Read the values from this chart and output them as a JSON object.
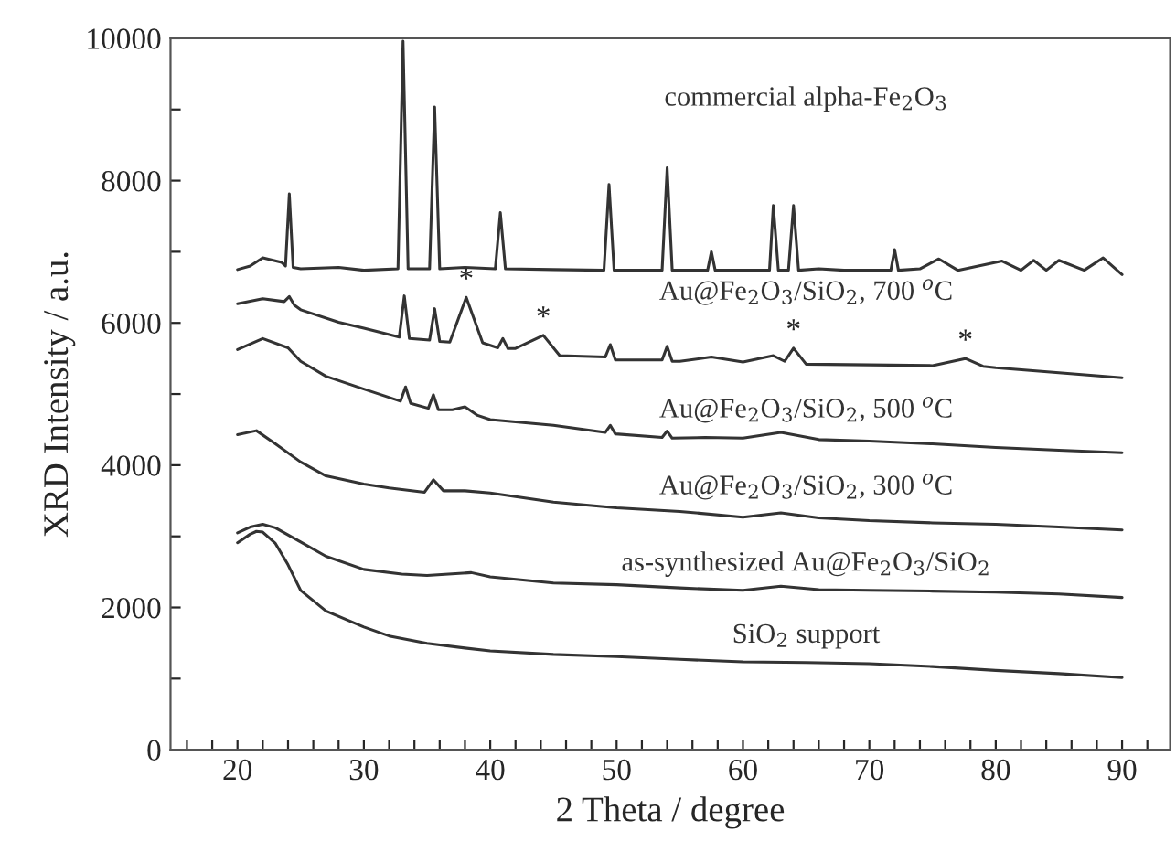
{
  "chart_data": {
    "type": "line",
    "xlabel": "2 Theta / degree",
    "ylabel": "XRD Intensity / a.u.",
    "xlim": [
      14.7,
      93.8
    ],
    "ylim": [
      0,
      10000
    ],
    "xticks": [
      {
        "value": 16,
        "label": null
      },
      {
        "value": 18,
        "label": null
      },
      20,
      {
        "value": 22,
        "label": null
      },
      {
        "value": 24,
        "label": null
      },
      {
        "value": 26,
        "label": null
      },
      {
        "value": 28,
        "label": null
      },
      30,
      {
        "value": 32,
        "label": null
      },
      {
        "value": 34,
        "label": null
      },
      {
        "value": 36,
        "label": null
      },
      {
        "value": 38,
        "label": null
      },
      40,
      {
        "value": 42,
        "label": null
      },
      {
        "value": 44,
        "label": null
      },
      {
        "value": 46,
        "label": null
      },
      {
        "value": 48,
        "label": null
      },
      50,
      {
        "value": 52,
        "label": null
      },
      {
        "value": 54,
        "label": null
      },
      {
        "value": 56,
        "label": null
      },
      {
        "value": 58,
        "label": null
      },
      60,
      {
        "value": 62,
        "label": null
      },
      {
        "value": 64,
        "label": null
      },
      {
        "value": 66,
        "label": null
      },
      {
        "value": 68,
        "label": null
      },
      70,
      {
        "value": 72,
        "label": null
      },
      {
        "value": 74,
        "label": null
      },
      {
        "value": 76,
        "label": null
      },
      {
        "value": 78,
        "label": null
      },
      80,
      {
        "value": 82,
        "label": null
      },
      {
        "value": 84,
        "label": null
      },
      {
        "value": 86,
        "label": null
      },
      {
        "value": 88,
        "label": null
      },
      90,
      {
        "value": 92,
        "label": null
      }
    ],
    "yticks": [
      0,
      {
        "value": 1000,
        "label": null
      },
      2000,
      {
        "value": 3000,
        "label": null
      },
      4000,
      {
        "value": 5000,
        "label": null
      },
      6000,
      {
        "value": 7000,
        "label": null
      },
      8000,
      {
        "value": 9000,
        "label": null
      },
      10000
    ],
    "series": [
      {
        "name": "SiO$_{2}$ support",
        "color": "#333333",
        "x": [
          20,
          21,
          21.5,
          22,
          23,
          24,
          25,
          27,
          30,
          32,
          35,
          38,
          40,
          45,
          50,
          55,
          60,
          65,
          70,
          75,
          80,
          85,
          90
        ],
        "values": [
          2910,
          3030,
          3070,
          3060,
          2900,
          2600,
          2240,
          1950,
          1725,
          1600,
          1495,
          1430,
          1390,
          1340,
          1310,
          1270,
          1235,
          1225,
          1210,
          1170,
          1115,
          1070,
          1015
        ]
      },
      {
        "name": "as-synthesized Au@Fe$_{2}$O$_{3}$/SiO$_{2}$",
        "color": "#333333",
        "x": [
          20,
          21,
          22,
          23,
          25,
          27,
          30,
          33,
          35,
          38.5,
          40,
          45,
          50,
          55,
          60,
          63,
          66,
          70,
          75,
          80,
          85,
          90
        ],
        "values": [
          3050,
          3130,
          3170,
          3120,
          2920,
          2720,
          2535,
          2470,
          2450,
          2490,
          2430,
          2345,
          2320,
          2275,
          2240,
          2300,
          2250,
          2240,
          2230,
          2215,
          2190,
          2140
        ]
      },
      {
        "name": "Au@Fe$_{2}$O$_{3}$/SiO$_{2}$, 300 $^{o}$C",
        "color": "#333333",
        "x": [
          20,
          21.5,
          23,
          25,
          27,
          30,
          32,
          34.8,
          35.5,
          36.3,
          38,
          40,
          45,
          50,
          55,
          60,
          63,
          66,
          70,
          75,
          80,
          85,
          90
        ],
        "values": [
          4430,
          4485,
          4300,
          4045,
          3850,
          3735,
          3680,
          3620,
          3795,
          3640,
          3640,
          3610,
          3480,
          3400,
          3350,
          3270,
          3330,
          3260,
          3220,
          3190,
          3170,
          3130,
          3090
        ]
      },
      {
        "name": "Au@Fe$_{2}$O$_{3}$/SiO$_{2}$, 500 $^{o}$C",
        "color": "#333333",
        "x": [
          20,
          22,
          24,
          25,
          27,
          30,
          32.9,
          33.3,
          33.7,
          35.1,
          35.5,
          35.9,
          37,
          38,
          39,
          40,
          45,
          49.1,
          49.5,
          49.9,
          53.6,
          54,
          54.4,
          57,
          60,
          63,
          66,
          70,
          75,
          80,
          85,
          90
        ],
        "values": [
          5625,
          5780,
          5650,
          5460,
          5250,
          5070,
          4900,
          5100,
          4870,
          4800,
          4990,
          4780,
          4780,
          4820,
          4700,
          4640,
          4560,
          4460,
          4560,
          4440,
          4390,
          4480,
          4380,
          4390,
          4380,
          4460,
          4360,
          4340,
          4300,
          4250,
          4210,
          4175
        ]
      },
      {
        "name": "Au@Fe$_{2}$O$_{3}$/SiO$_{2}$, 700 $^{o}$C",
        "color": "#333333",
        "x": [
          20,
          22,
          23.7,
          24.1,
          24.5,
          25,
          28,
          30,
          32.8,
          33.2,
          33.6,
          35.2,
          35.6,
          36.0,
          36.8,
          38.1,
          39.4,
          40.6,
          41,
          41.4,
          42,
          44.2,
          45.5,
          49.1,
          49.5,
          49.9,
          51,
          53.6,
          54,
          54.4,
          55,
          57.5,
          60,
          62.4,
          63.3,
          64.0,
          65,
          70,
          75,
          77.6,
          79,
          80,
          85,
          90
        ],
        "values": [
          6270,
          6340,
          6300,
          6370,
          6250,
          6185,
          6010,
          5925,
          5800,
          6380,
          5780,
          5760,
          6200,
          5740,
          5730,
          6360,
          5720,
          5650,
          5780,
          5640,
          5640,
          5825,
          5540,
          5520,
          5695,
          5480,
          5480,
          5480,
          5670,
          5460,
          5460,
          5520,
          5450,
          5540,
          5460,
          5645,
          5420,
          5410,
          5400,
          5500,
          5390,
          5370,
          5300,
          5230
        ]
      },
      {
        "name": "commercial alpha-Fe$_{2}$O$_{3}$",
        "color": "#333333",
        "x": [
          20,
          21,
          22,
          23.5,
          23.8,
          24.1,
          24.4,
          25,
          28,
          30,
          32.7,
          33.1,
          33.5,
          35.2,
          35.6,
          36,
          38,
          40.4,
          40.8,
          41.2,
          45,
          49,
          49.4,
          49.8,
          53.6,
          54,
          54.4,
          57.2,
          57.5,
          57.8,
          60,
          62.1,
          62.4,
          62.8,
          63.6,
          64,
          64.4,
          66,
          68,
          71.7,
          72,
          72.3,
          74,
          75.5,
          77,
          80.5,
          82,
          83,
          84,
          85,
          87,
          88.5,
          90
        ],
        "values": [
          6750,
          6800,
          6915,
          6850,
          6800,
          7815,
          6780,
          6760,
          6780,
          6740,
          6760,
          9960,
          6760,
          6760,
          9035,
          6760,
          6780,
          6760,
          7550,
          6760,
          6750,
          6740,
          7945,
          6740,
          6740,
          8180,
          6740,
          6740,
          7000,
          6740,
          6740,
          6740,
          7650,
          6740,
          6740,
          7650,
          6740,
          6760,
          6740,
          6740,
          7030,
          6740,
          6760,
          6900,
          6740,
          6870,
          6740,
          6880,
          6740,
          6880,
          6740,
          6915,
          6680
        ]
      }
    ],
    "annotations": [
      {
        "text": "*",
        "x": 38.1,
        "y": 6360
      },
      {
        "text": "*",
        "x": 44.2,
        "y": 5825
      },
      {
        "text": "*",
        "x": 64.0,
        "y": 5645
      },
      {
        "text": "*",
        "x": 77.6,
        "y": 5500
      }
    ]
  }
}
